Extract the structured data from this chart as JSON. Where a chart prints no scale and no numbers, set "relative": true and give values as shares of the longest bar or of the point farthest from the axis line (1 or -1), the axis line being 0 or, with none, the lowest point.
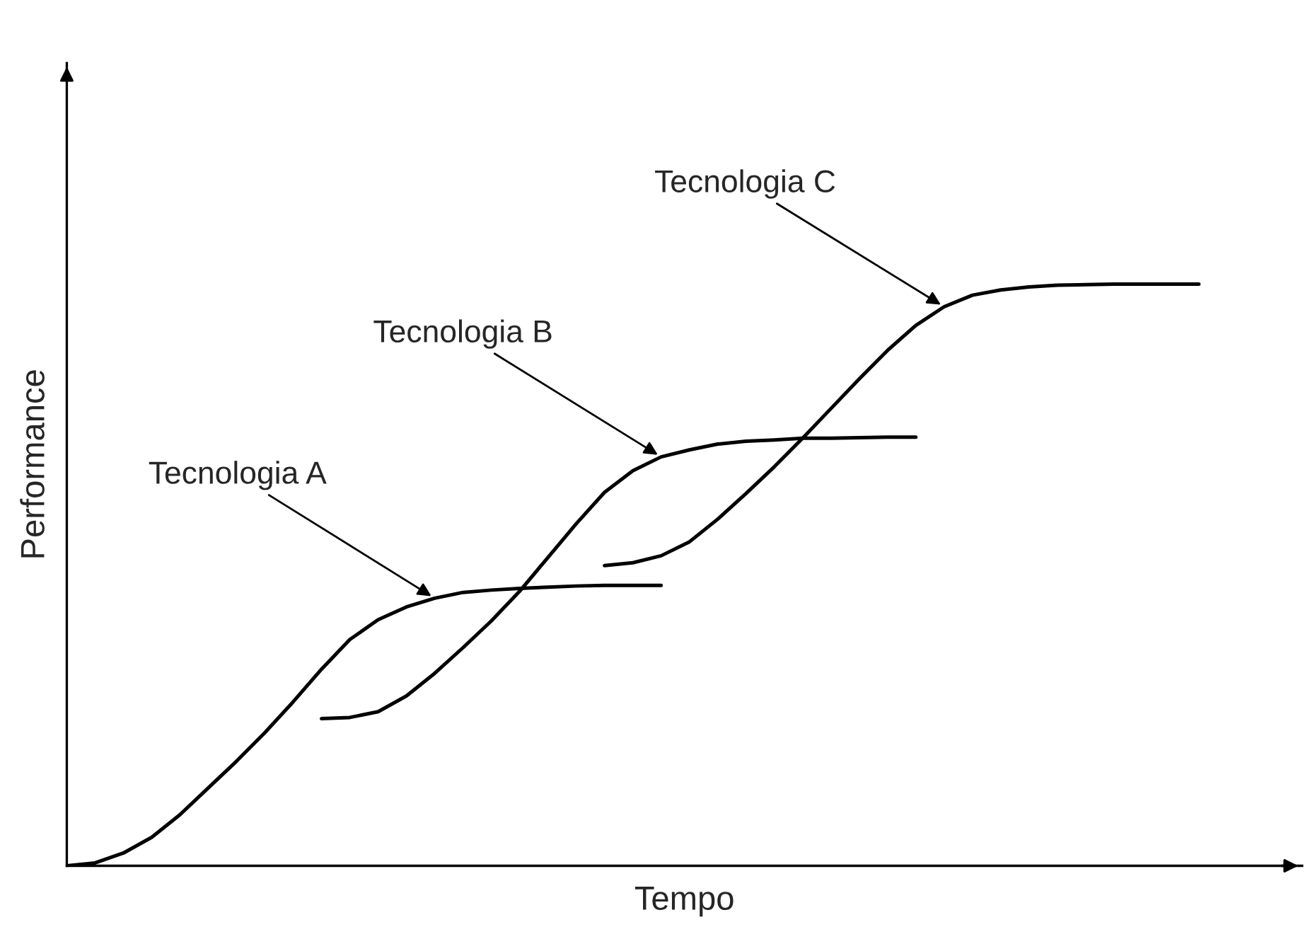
{
  "chart_data": {
    "type": "line",
    "relative": true,
    "xlabel": "Tempo",
    "ylabel": "Performance",
    "legend": false,
    "marker": "none",
    "line_style": "solid",
    "categories": [
      null,
      null,
      null,
      null,
      null,
      null,
      null,
      null,
      null,
      null,
      null,
      null,
      null,
      null,
      null,
      null,
      null,
      null,
      null,
      null,
      null,
      null,
      null,
      null,
      null,
      null,
      null,
      null,
      null,
      null,
      null,
      null,
      null,
      null,
      null,
      null,
      null,
      null,
      null,
      null,
      null
    ],
    "series": [
      {
        "name": "Tecnologia A",
        "color": "#000000",
        "values": [
          0,
          0.005,
          0.022,
          0.049,
          0.088,
          0.134,
          0.18,
          0.229,
          0.282,
          0.338,
          0.389,
          0.423,
          0.445,
          0.46,
          0.47,
          0.474,
          0.477,
          0.479,
          0.481,
          0.482,
          0.482,
          0.482,
          null,
          null,
          null,
          null,
          null,
          null,
          null,
          null,
          null,
          null,
          null,
          null,
          null,
          null,
          null,
          null,
          null,
          null,
          null
        ]
      },
      {
        "name": "Tecnologia B",
        "color": "#000000",
        "values": [
          null,
          null,
          null,
          null,
          null,
          null,
          null,
          null,
          null,
          0.253,
          0.255,
          0.265,
          0.292,
          0.331,
          0.375,
          0.421,
          0.472,
          0.53,
          0.588,
          0.642,
          0.679,
          0.703,
          0.715,
          0.725,
          0.73,
          0.732,
          0.735,
          0.735,
          0.736,
          0.737,
          0.737,
          null,
          null,
          null,
          null,
          null,
          null,
          null,
          null,
          null,
          null
        ]
      },
      {
        "name": "Tecnologia C",
        "color": "#000000",
        "values": [
          null,
          null,
          null,
          null,
          null,
          null,
          null,
          null,
          null,
          null,
          null,
          null,
          null,
          null,
          null,
          null,
          null,
          null,
          null,
          0.516,
          0.521,
          0.533,
          0.557,
          0.596,
          0.64,
          0.686,
          0.735,
          0.786,
          0.837,
          0.886,
          0.929,
          0.961,
          0.981,
          0.99,
          0.995,
          0.998,
          0.999,
          1,
          1,
          1,
          1
        ]
      }
    ]
  }
}
